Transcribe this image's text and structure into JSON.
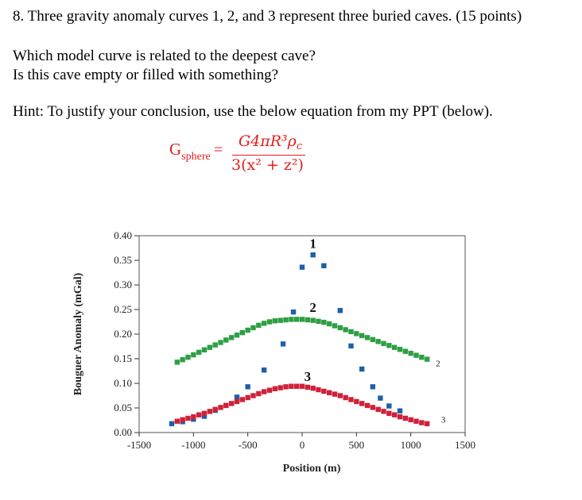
{
  "question": {
    "line": "8.  Three gravity anomaly curves 1, 2, and 3 represent three buried caves. (15 points)",
    "which": "Which model curve  is related to the deepest cave?",
    "empty": "Is this cave empty or filled with something?",
    "hint": "Hint: To justify your conclusion, use the below equation from my PPT (below)."
  },
  "equation": {
    "lhs": "G",
    "lhs_sub": "sphere",
    "equals": "=",
    "numerator": "G4πR³ρ",
    "numerator_sub": "c",
    "denominator": "3(x² + z²)",
    "color": "#e02020"
  },
  "chart_data": {
    "type": "scatter",
    "ylabel": "Bouguer Anomaly (mGal)",
    "xlabel": "Position (m)",
    "xlim": [
      -1500,
      1500
    ],
    "ylim": [
      0,
      0.4
    ],
    "xticks": [
      "-1500",
      "-1000",
      "-500",
      "0",
      "500",
      "1000",
      "1500"
    ],
    "yticks": [
      "0.00",
      "0.05",
      "0.10",
      "0.15",
      "0.20",
      "0.25",
      "0.30",
      "0.35",
      "0.40"
    ],
    "grid": false,
    "series": [
      {
        "name": "1",
        "color": "#1f5fa8",
        "x": [
          -1200,
          -1100,
          -1000,
          -900,
          -800,
          -700,
          -600,
          -500,
          -350,
          -175,
          -80,
          0,
          100,
          200,
          350,
          450,
          550,
          650,
          720,
          800,
          900
        ],
        "y": [
          0.018,
          0.022,
          0.027,
          0.033,
          0.045,
          0.055,
          0.072,
          0.093,
          0.127,
          0.18,
          0.245,
          0.336,
          0.361,
          0.339,
          0.248,
          0.176,
          0.129,
          0.093,
          0.07,
          0.054,
          0.044
        ]
      },
      {
        "name": "2",
        "color": "#2ea043",
        "x": [
          -1150,
          -1100,
          -1050,
          -1000,
          -950,
          -900,
          -850,
          -800,
          -750,
          -700,
          -650,
          -600,
          -550,
          -500,
          -450,
          -400,
          -350,
          -300,
          -250,
          -200,
          -150,
          -100,
          -50,
          0,
          50,
          100,
          150,
          200,
          250,
          300,
          350,
          400,
          450,
          500,
          550,
          600,
          650,
          700,
          750,
          800,
          850,
          900,
          950,
          1000,
          1050,
          1100,
          1150
        ],
        "y": [
          0.143,
          0.148,
          0.153,
          0.158,
          0.163,
          0.168,
          0.173,
          0.178,
          0.183,
          0.188,
          0.193,
          0.198,
          0.203,
          0.208,
          0.213,
          0.218,
          0.222,
          0.225,
          0.227,
          0.228,
          0.229,
          0.23,
          0.23,
          0.23,
          0.229,
          0.228,
          0.226,
          0.224,
          0.221,
          0.217,
          0.213,
          0.209,
          0.205,
          0.201,
          0.197,
          0.193,
          0.189,
          0.185,
          0.181,
          0.177,
          0.173,
          0.169,
          0.165,
          0.161,
          0.157,
          0.153,
          0.149
        ]
      },
      {
        "name": "3",
        "color": "#d0213b",
        "x": [
          -1150,
          -1100,
          -1050,
          -1000,
          -950,
          -900,
          -850,
          -800,
          -750,
          -700,
          -650,
          -600,
          -550,
          -500,
          -450,
          -400,
          -350,
          -300,
          -250,
          -200,
          -150,
          -100,
          -50,
          0,
          50,
          100,
          150,
          200,
          250,
          300,
          350,
          400,
          450,
          500,
          550,
          600,
          650,
          700,
          750,
          800,
          850,
          900,
          950,
          1000,
          1050,
          1100,
          1150
        ],
        "y": [
          0.023,
          0.026,
          0.029,
          0.032,
          0.036,
          0.039,
          0.043,
          0.047,
          0.051,
          0.055,
          0.059,
          0.063,
          0.067,
          0.071,
          0.075,
          0.079,
          0.083,
          0.086,
          0.089,
          0.091,
          0.093,
          0.094,
          0.094,
          0.094,
          0.092,
          0.09,
          0.087,
          0.084,
          0.081,
          0.078,
          0.075,
          0.071,
          0.067,
          0.063,
          0.059,
          0.055,
          0.051,
          0.047,
          0.043,
          0.039,
          0.036,
          0.032,
          0.029,
          0.026,
          0.023,
          0.02,
          0.018
        ]
      }
    ],
    "annotations": [
      {
        "text": "1",
        "x": 100,
        "y": 0.375,
        "bold": true
      },
      {
        "text": "2",
        "x": 100,
        "y": 0.245,
        "bold": true
      },
      {
        "text": "3",
        "x": 50,
        "y": 0.105,
        "bold": true
      },
      {
        "text": "2",
        "x": 1250,
        "y": 0.135,
        "bold": false
      },
      {
        "text": "3",
        "x": 1300,
        "y": 0.02,
        "bold": false
      }
    ]
  }
}
